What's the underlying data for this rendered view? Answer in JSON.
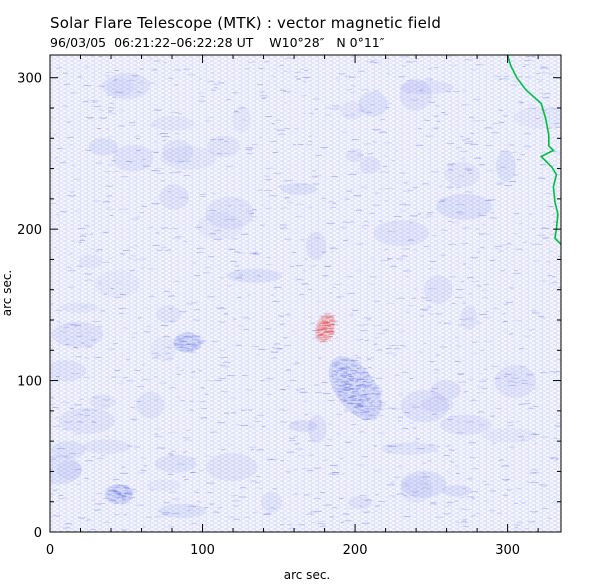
{
  "header": {
    "title": "Solar Flare Telescope (MTK) : vector magnetic field",
    "date": "96/03/05",
    "time_range": "06:21:22–06:22:28 UT",
    "coord_w": "W10°28″",
    "coord_n": "N 0°11″"
  },
  "chart_data": {
    "type": "heatmap",
    "xlabel": "arc sec.",
    "ylabel": "arc sec.",
    "xlim": [
      0,
      335
    ],
    "ylim": [
      0,
      315
    ],
    "x_ticks": [
      0,
      100,
      200,
      300
    ],
    "y_ticks": [
      0,
      100,
      200,
      300
    ],
    "colors": {
      "negative_field": "#6a78e8",
      "positive_field": "#e85050",
      "limb_contour": "#00c040",
      "frame": "#000000"
    },
    "features": [
      {
        "name": "negative-polarity-region",
        "polarity": "negative",
        "x": 200,
        "y": 95
      },
      {
        "name": "positive-polarity-region",
        "polarity": "positive",
        "x": 180,
        "y": 135
      },
      {
        "name": "weak-negative-region",
        "polarity": "negative",
        "x": 45,
        "y": 25
      },
      {
        "name": "weak-negative-region",
        "polarity": "negative",
        "x": 90,
        "y": 125
      }
    ],
    "limb_contour": [
      [
        300,
        315
      ],
      [
        302,
        308
      ],
      [
        306,
        300
      ],
      [
        312,
        292
      ],
      [
        322,
        283
      ],
      [
        325,
        273
      ],
      [
        327,
        262
      ],
      [
        327,
        255
      ],
      [
        330,
        252
      ],
      [
        322,
        248
      ],
      [
        325,
        245
      ],
      [
        329,
        241
      ],
      [
        332,
        236
      ],
      [
        330,
        228
      ],
      [
        331,
        218
      ],
      [
        333,
        210
      ],
      [
        332,
        200
      ],
      [
        331,
        194
      ],
      [
        335,
        190
      ]
    ]
  }
}
